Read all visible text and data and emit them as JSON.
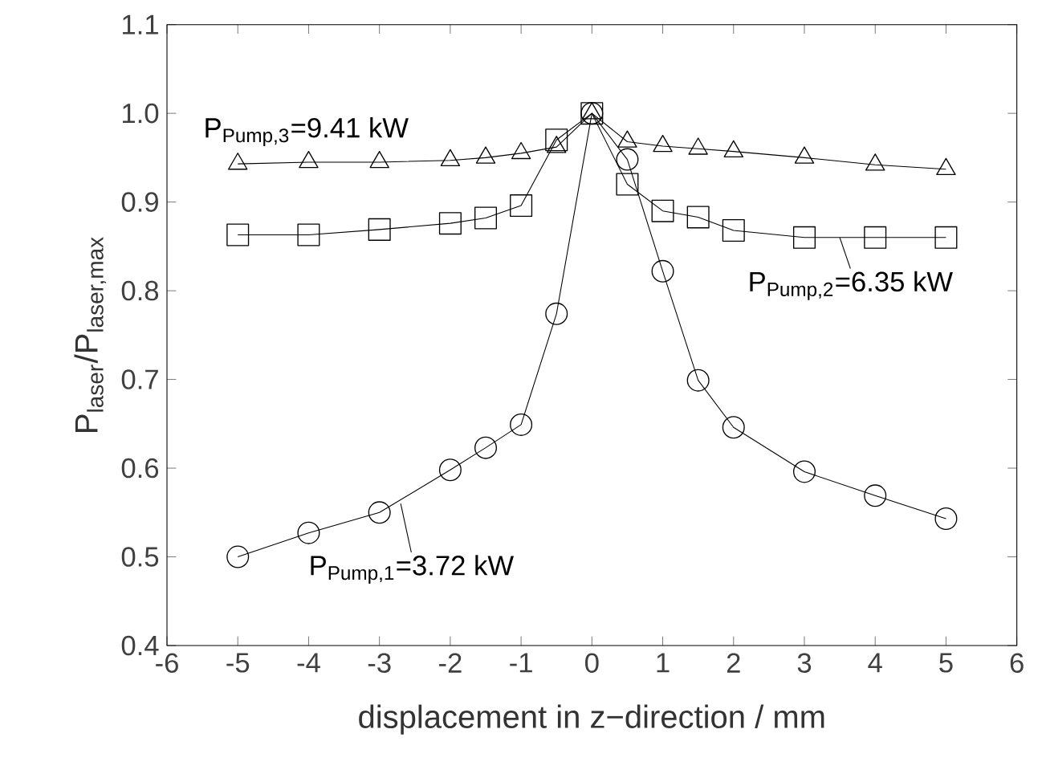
{
  "chart_data": {
    "type": "line",
    "xlabel": "displacement in z−direction / mm",
    "ylabel": "P$_{laser}$/P$_{laser,max}$",
    "xlim": [
      -6,
      6
    ],
    "xticks": [
      -6,
      -5,
      -4,
      -3,
      -2,
      -1,
      0,
      1,
      2,
      3,
      4,
      5,
      6
    ],
    "ylim": [
      0.4,
      1.1
    ],
    "yticks": [
      0.4,
      0.5,
      0.6,
      0.7,
      0.8,
      0.9,
      {
        "value": 1,
        "label": "1.0"
      },
      1.1
    ],
    "x": [
      -5,
      -4,
      -3,
      -2,
      -1.5,
      -1,
      -0.5,
      0,
      0.5,
      1,
      1.5,
      2,
      3,
      4,
      5
    ],
    "grid": false,
    "series": [
      {
        "color": "#000000",
        "marker": "circle",
        "values": [
          0.5,
          0.527,
          0.55,
          0.598,
          0.623,
          0.649,
          0.774,
          1.0,
          0.948,
          0.822,
          0.699,
          0.646,
          0.596,
          0.569,
          0.543
        ]
      },
      {
        "color": "#000000",
        "marker": "square",
        "values": [
          0.863,
          0.863,
          0.869,
          0.876,
          0.882,
          0.896,
          0.97,
          1.0,
          0.92,
          0.89,
          0.883,
          0.868,
          0.86,
          0.86,
          0.86
        ]
      },
      {
        "color": "#000000",
        "marker": "triangle",
        "values": [
          0.943,
          0.945,
          0.945,
          0.947,
          0.95,
          0.955,
          0.962,
          1.0,
          0.968,
          0.963,
          0.96,
          0.957,
          0.95,
          0.942,
          0.937
        ]
      }
    ],
    "annotations": [
      {
        "text": "P$_{Pump,1}$=3.72 kW",
        "x": -2.7,
        "y": 0.56
      },
      {
        "text": "P$_{Pump,2}$=6.35 kW",
        "x": 3.5,
        "y": 0.86
      },
      "P$_{Pump,3}$=9.41 kW"
    ]
  }
}
